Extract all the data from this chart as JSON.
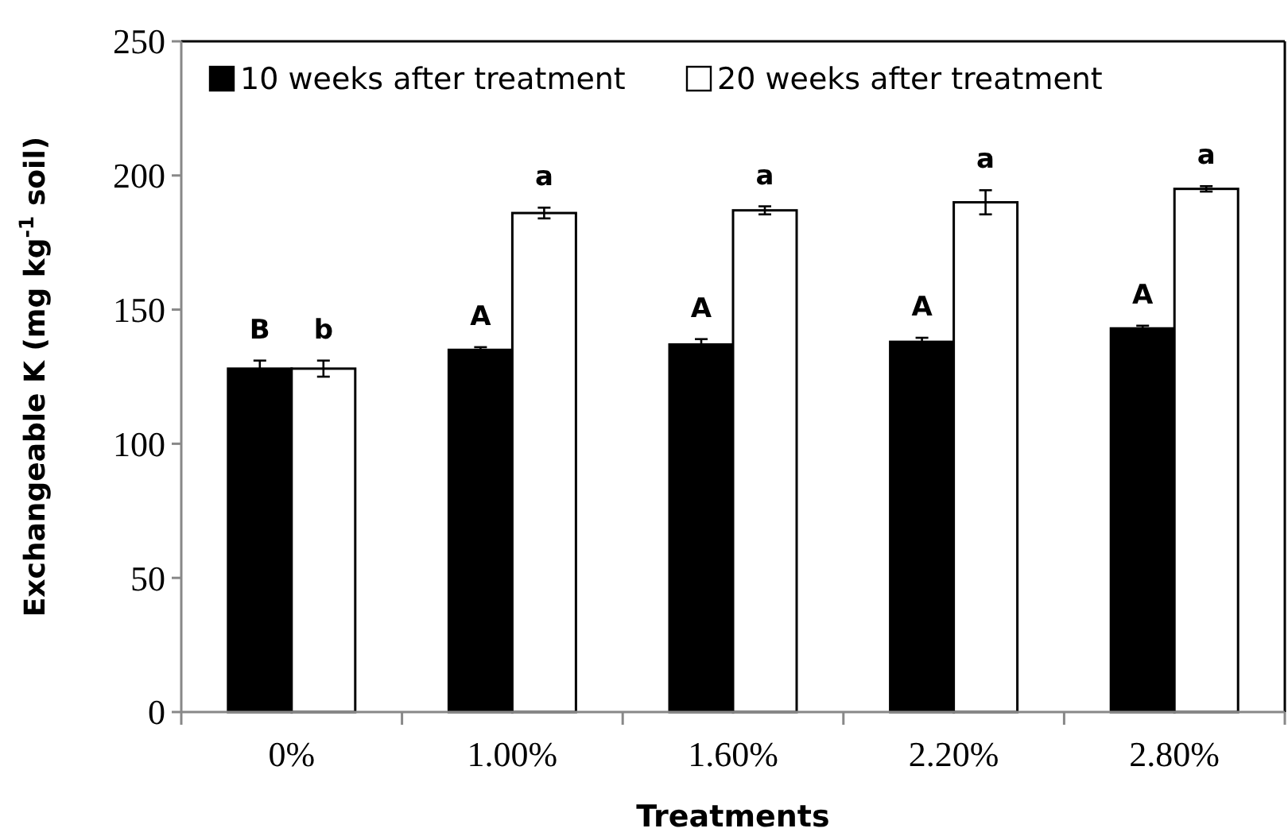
{
  "chart_data": {
    "type": "bar",
    "xlabel": "Treatments",
    "ylabel": "Exchangeable K (mg kg$^{-1}$ soil)",
    "categories": [
      "0%",
      "1.00%",
      "1.60%",
      "2.20%",
      "2.80%"
    ],
    "series": [
      {
        "name": "10 weeks after treatment",
        "color": "#000000",
        "values": [
          128,
          135,
          137,
          138,
          143
        ],
        "errors": [
          3,
          1,
          2,
          1.5,
          1
        ]
      },
      {
        "name": "20 weeks after treatment",
        "color": "#ffffff",
        "values": [
          128,
          186,
          187,
          190,
          195
        ],
        "errors": [
          3,
          2,
          1.5,
          4.5,
          1
        ]
      }
    ],
    "ylim": [
      0,
      250
    ],
    "yticks": [
      0,
      50,
      100,
      150,
      200,
      250
    ],
    "grid": false,
    "legend": "top left",
    "annotations": [
      {
        "text": "B",
        "x": "0%",
        "y": 128
      },
      {
        "text": "b",
        "x": "0%",
        "y": 128
      },
      {
        "text": "A",
        "x": "1.00%",
        "y": 135
      },
      {
        "text": "a",
        "x": "1.00%",
        "y": 186
      },
      {
        "text": "A",
        "x": "1.60%",
        "y": 137
      },
      {
        "text": "a",
        "x": "1.60%",
        "y": 187
      },
      {
        "text": "A",
        "x": "2.20%",
        "y": 138
      },
      {
        "text": "a",
        "x": "2.20%",
        "y": 190
      },
      {
        "text": "A",
        "x": "2.80%",
        "y": 143
      },
      {
        "text": "a",
        "x": "2.80%",
        "y": 195
      }
    ]
  }
}
